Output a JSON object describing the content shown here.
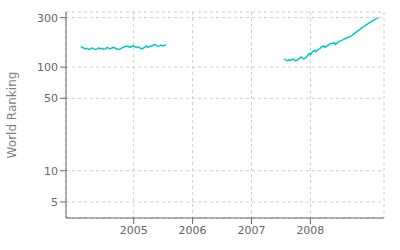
{
  "chart_data": {
    "type": "line",
    "ylabel": "World Ranking",
    "log": "y",
    "grid": true,
    "xlim": [
      2003.85,
      2009.25
    ],
    "xticks": [
      2005,
      2006,
      2007,
      2008
    ],
    "ylim": [
      3.5,
      340
    ],
    "yticks": [
      5,
      10,
      50,
      100,
      300
    ],
    "series": [
      {
        "color": "#00c8c8",
        "x": [
          2004.1,
          2004.1279,
          2004.1558,
          2004.1837,
          2004.2115,
          2004.2394,
          2004.2673,
          2004.2952,
          2004.3231,
          2004.351,
          2004.3788,
          2004.4067,
          2004.4346,
          2004.4625,
          2004.4904,
          2004.5183,
          2004.5462,
          2004.574,
          2004.6019,
          2004.6298,
          2004.6577,
          2004.6856,
          2004.7135,
          2004.7413,
          2004.7692,
          2004.7971,
          2004.825,
          2004.8529,
          2004.8808,
          2004.9087,
          2004.9365,
          2004.9644,
          2004.9923,
          2005.0202,
          2005.0481,
          2005.076,
          2005.1038,
          2005.1317,
          2005.1596,
          2005.1875,
          2005.2154,
          2005.2433,
          2005.2712,
          2005.299,
          2005.3269,
          2005.3548,
          2005.3827,
          2005.4106,
          2005.4385,
          2005.4663,
          2005.4942,
          2005.5221,
          2005.55
        ],
        "values": [
          158,
          155,
          152,
          150,
          152,
          148,
          150,
          153,
          150,
          148,
          150,
          153,
          150,
          152,
          148,
          150,
          155,
          152,
          150,
          153,
          155,
          152,
          150,
          148,
          150,
          153,
          155,
          158,
          160,
          158,
          155,
          158,
          160,
          157,
          155,
          157,
          153,
          150,
          152,
          155,
          160,
          155,
          158,
          160,
          162,
          165,
          162,
          158,
          160,
          163,
          160,
          162,
          165
        ]
      },
      {
        "color": "#00c8c8",
        "x": [
          2007.55,
          2007.5725,
          2007.5951,
          2007.6176,
          2007.6401,
          2007.6627,
          2007.6852,
          2007.7077,
          2007.7303,
          2007.7528,
          2007.7754,
          2007.7979,
          2007.8204,
          2007.843,
          2007.8655,
          2007.888,
          2007.9106,
          2007.9331,
          2007.9556,
          2007.9782,
          2008.0007,
          2008.0232,
          2008.0458,
          2008.0683,
          2008.0908,
          2008.1134,
          2008.1359,
          2008.1585,
          2008.181,
          2008.2035,
          2008.2261,
          2008.2486,
          2008.2711,
          2008.2937,
          2008.3162,
          2008.3387,
          2008.3613,
          2008.3838,
          2008.4063,
          2008.4289,
          2008.4514,
          2008.4739,
          2008.4965,
          2008.519,
          2008.5415,
          2008.5641,
          2008.5866,
          2008.6092,
          2008.6317,
          2008.6542,
          2008.6768,
          2008.6993,
          2008.7218,
          2008.7444,
          2008.7669,
          2008.7894,
          2008.812,
          2008.8345,
          2008.857,
          2008.8796,
          2008.9021,
          2008.9246,
          2008.9472,
          2008.9697,
          2008.9923,
          2009.0148,
          2009.0373,
          2009.0599,
          2009.0824,
          2009.1049,
          2009.1275,
          2009.15
        ],
        "values": [
          120,
          118,
          116,
          115,
          118,
          116,
          118,
          120,
          117,
          115,
          117,
          120,
          122,
          125,
          122,
          120,
          122,
          125,
          130,
          135,
          132,
          138,
          142,
          145,
          140,
          145,
          148,
          150,
          155,
          158,
          160,
          155,
          158,
          162,
          165,
          168,
          170,
          168,
          172,
          165,
          170,
          175,
          178,
          180,
          182,
          185,
          188,
          190,
          193,
          195,
          198,
          200,
          205,
          210,
          215,
          220,
          225,
          230,
          235,
          240,
          245,
          250,
          255,
          260,
          265,
          270,
          275,
          280,
          285,
          290,
          295,
          298
        ]
      }
    ]
  }
}
